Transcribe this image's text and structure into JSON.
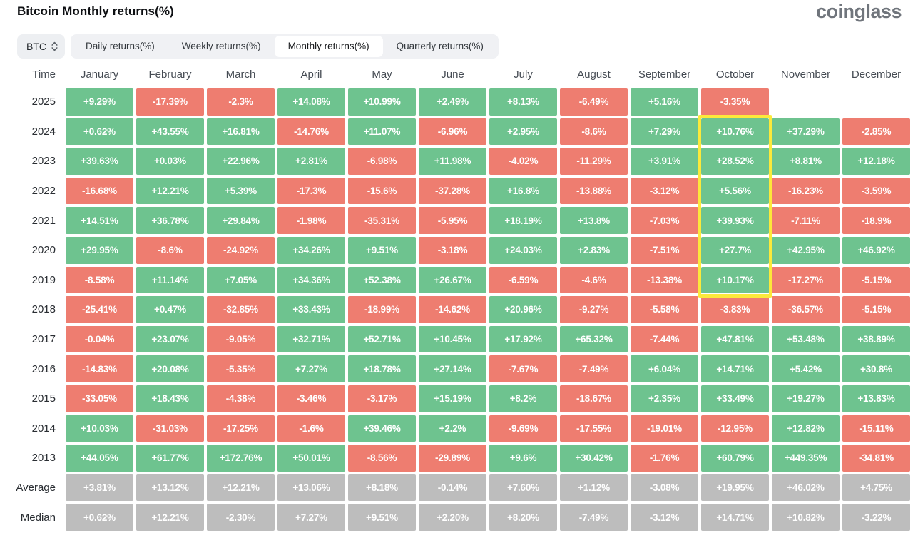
{
  "header": {
    "title": "Bitcoin Monthly returns(%)",
    "logo": "coinglass"
  },
  "controls": {
    "symbol": "BTC",
    "tabs": [
      {
        "label": "Daily returns(%)",
        "active": false
      },
      {
        "label": "Weekly returns(%)",
        "active": false
      },
      {
        "label": "Monthly returns(%)",
        "active": true
      },
      {
        "label": "Quarterly returns(%)",
        "active": false
      }
    ]
  },
  "colors": {
    "positive": "#6EC38F",
    "negative": "#EE7D70",
    "neutral": "#BDBDBD",
    "highlight": "#FCE93B"
  },
  "chart_data": {
    "type": "heatmap",
    "title": "Bitcoin Monthly returns(%)",
    "unit": "%",
    "time_label": "Time",
    "columns": [
      "January",
      "February",
      "March",
      "April",
      "May",
      "June",
      "July",
      "August",
      "September",
      "October",
      "November",
      "December"
    ],
    "rows": [
      {
        "label": "2025",
        "type": "year",
        "values": [
          "+9.29%",
          "-17.39%",
          "-2.3%",
          "+14.08%",
          "+10.99%",
          "+2.49%",
          "+8.13%",
          "-6.49%",
          "+5.16%",
          "-3.35%",
          "",
          ""
        ]
      },
      {
        "label": "2024",
        "type": "year",
        "values": [
          "+0.62%",
          "+43.55%",
          "+16.81%",
          "-14.76%",
          "+11.07%",
          "-6.96%",
          "+2.95%",
          "-8.6%",
          "+7.29%",
          "+10.76%",
          "+37.29%",
          "-2.85%"
        ]
      },
      {
        "label": "2023",
        "type": "year",
        "values": [
          "+39.63%",
          "+0.03%",
          "+22.96%",
          "+2.81%",
          "-6.98%",
          "+11.98%",
          "-4.02%",
          "-11.29%",
          "+3.91%",
          "+28.52%",
          "+8.81%",
          "+12.18%"
        ]
      },
      {
        "label": "2022",
        "type": "year",
        "values": [
          "-16.68%",
          "+12.21%",
          "+5.39%",
          "-17.3%",
          "-15.6%",
          "-37.28%",
          "+16.8%",
          "-13.88%",
          "-3.12%",
          "+5.56%",
          "-16.23%",
          "-3.59%"
        ]
      },
      {
        "label": "2021",
        "type": "year",
        "values": [
          "+14.51%",
          "+36.78%",
          "+29.84%",
          "-1.98%",
          "-35.31%",
          "-5.95%",
          "+18.19%",
          "+13.8%",
          "-7.03%",
          "+39.93%",
          "-7.11%",
          "-18.9%"
        ]
      },
      {
        "label": "2020",
        "type": "year",
        "values": [
          "+29.95%",
          "-8.6%",
          "-24.92%",
          "+34.26%",
          "+9.51%",
          "-3.18%",
          "+24.03%",
          "+2.83%",
          "-7.51%",
          "+27.7%",
          "+42.95%",
          "+46.92%"
        ]
      },
      {
        "label": "2019",
        "type": "year",
        "values": [
          "-8.58%",
          "+11.14%",
          "+7.05%",
          "+34.36%",
          "+52.38%",
          "+26.67%",
          "-6.59%",
          "-4.6%",
          "-13.38%",
          "+10.17%",
          "-17.27%",
          "-5.15%"
        ]
      },
      {
        "label": "2018",
        "type": "year",
        "values": [
          "-25.41%",
          "+0.47%",
          "-32.85%",
          "+33.43%",
          "-18.99%",
          "-14.62%",
          "+20.96%",
          "-9.27%",
          "-5.58%",
          "-3.83%",
          "-36.57%",
          "-5.15%"
        ]
      },
      {
        "label": "2017",
        "type": "year",
        "values": [
          "-0.04%",
          "+23.07%",
          "-9.05%",
          "+32.71%",
          "+52.71%",
          "+10.45%",
          "+17.92%",
          "+65.32%",
          "-7.44%",
          "+47.81%",
          "+53.48%",
          "+38.89%"
        ]
      },
      {
        "label": "2016",
        "type": "year",
        "values": [
          "-14.83%",
          "+20.08%",
          "-5.35%",
          "+7.27%",
          "+18.78%",
          "+27.14%",
          "-7.67%",
          "-7.49%",
          "+6.04%",
          "+14.71%",
          "+5.42%",
          "+30.8%"
        ]
      },
      {
        "label": "2015",
        "type": "year",
        "values": [
          "-33.05%",
          "+18.43%",
          "-4.38%",
          "-3.46%",
          "-3.17%",
          "+15.19%",
          "+8.2%",
          "-18.67%",
          "+2.35%",
          "+33.49%",
          "+19.27%",
          "+13.83%"
        ]
      },
      {
        "label": "2014",
        "type": "year",
        "values": [
          "+10.03%",
          "-31.03%",
          "-17.25%",
          "-1.6%",
          "+39.46%",
          "+2.2%",
          "-9.69%",
          "-17.55%",
          "-19.01%",
          "-12.95%",
          "+12.82%",
          "-15.11%"
        ]
      },
      {
        "label": "2013",
        "type": "year",
        "values": [
          "+44.05%",
          "+61.77%",
          "+172.76%",
          "+50.01%",
          "-8.56%",
          "-29.89%",
          "+9.6%",
          "+30.42%",
          "-1.76%",
          "+60.79%",
          "+449.35%",
          "-34.81%"
        ]
      },
      {
        "label": "Average",
        "type": "summary",
        "values": [
          "+3.81%",
          "+13.12%",
          "+12.21%",
          "+13.06%",
          "+8.18%",
          "-0.14%",
          "+7.60%",
          "+1.12%",
          "-3.08%",
          "+19.95%",
          "+46.02%",
          "+4.75%"
        ]
      },
      {
        "label": "Median",
        "type": "summary",
        "values": [
          "+0.62%",
          "+12.21%",
          "-2.30%",
          "+7.27%",
          "+9.51%",
          "+2.20%",
          "+8.20%",
          "-7.49%",
          "-3.12%",
          "+14.71%",
          "+10.82%",
          "-3.22%"
        ]
      }
    ],
    "highlight": {
      "month": "October",
      "from_row": "2024",
      "to_row": "2019"
    }
  }
}
